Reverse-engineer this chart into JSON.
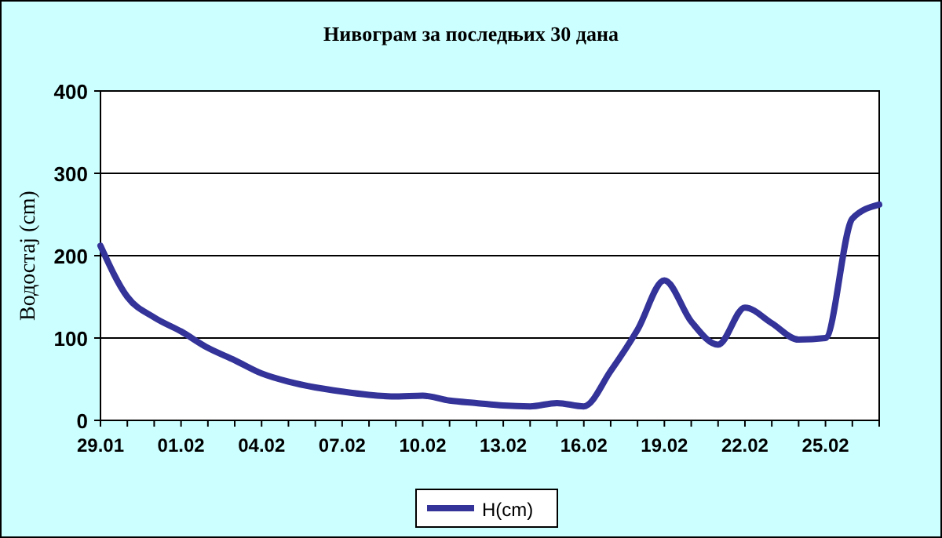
{
  "chart_data": {
    "type": "line",
    "title": "Нивограм за последњих 30 дана",
    "ylabel": "Водостај (cm)",
    "categories": [
      "29.01",
      null,
      null,
      "01.02",
      null,
      null,
      "04.02",
      null,
      null,
      "07.02",
      null,
      null,
      "10.02",
      null,
      null,
      "13.02",
      null,
      null,
      "16.02",
      null,
      null,
      "19.02",
      null,
      null,
      "22.02",
      null,
      null,
      "25.02",
      null,
      null
    ],
    "series": [
      {
        "name": "H(cm)",
        "color": "#333399",
        "values": [
          212,
          150,
          125,
          108,
          88,
          73,
          57,
          47,
          40,
          35,
          31,
          29,
          30,
          24,
          21,
          18,
          17,
          21,
          17,
          60,
          110,
          170,
          120,
          92,
          137,
          118,
          98,
          100,
          245,
          262
        ]
      }
    ],
    "ylim": [
      0,
      400
    ],
    "yticks": [
      0,
      100,
      200,
      300,
      400
    ],
    "grid": "y",
    "legend": "bottom",
    "marker": "none",
    "line_style": "solid"
  }
}
